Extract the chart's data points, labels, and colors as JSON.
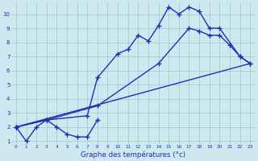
{
  "xlabel": "Graphe des températures (°c)",
  "bg_color": "#cde8ef",
  "grid_color": "#9dc8d4",
  "line_color": "#2030b0",
  "ylim": [
    0.8,
    10.8
  ],
  "xlim": [
    -0.5,
    23.5
  ],
  "line1_x": [
    0,
    1,
    2,
    3,
    4,
    5,
    6,
    7,
    8
  ],
  "line1_y": [
    2.0,
    1.0,
    2.0,
    2.5,
    2.0,
    1.5,
    1.3,
    1.3,
    2.5
  ],
  "line2_x": [
    0,
    3,
    7,
    8,
    10,
    11,
    12,
    13,
    14,
    15,
    16,
    17,
    18,
    19,
    20,
    22,
    23
  ],
  "line2_y": [
    2.0,
    2.5,
    2.8,
    5.5,
    7.2,
    7.5,
    8.5,
    8.1,
    9.2,
    10.5,
    10.0,
    10.5,
    10.2,
    9.0,
    9.0,
    7.0,
    6.5
  ],
  "line3_x": [
    0,
    3,
    8,
    14,
    17,
    18,
    19,
    20,
    21,
    22,
    23
  ],
  "line3_y": [
    2.0,
    2.5,
    3.5,
    6.5,
    9.0,
    8.8,
    8.5,
    8.5,
    7.8,
    7.0,
    6.5
  ],
  "line4_x": [
    0,
    23
  ],
  "line4_y": [
    2.0,
    6.5
  ]
}
